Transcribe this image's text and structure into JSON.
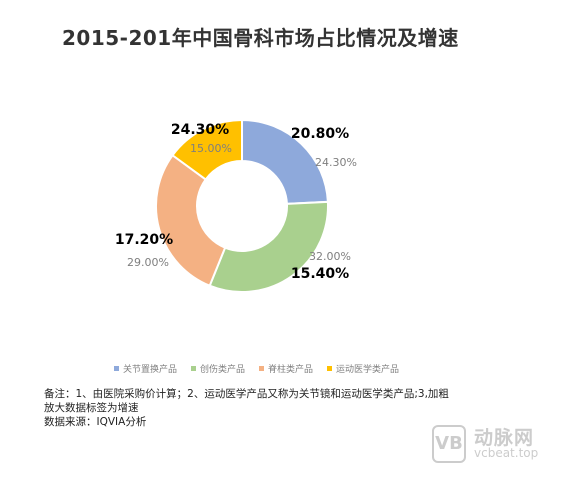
{
  "title": "2015-201年中国骨科市场占比情况及增速",
  "chart_data": {
    "type": "pie",
    "title": "2015-201年中国骨科市场占比情况及增速",
    "categories": [
      "关节置换产品",
      "创伤类产品",
      "脊柱类产品",
      "运动医学类产品"
    ],
    "colors": [
      "#8EA9DB",
      "#A9D08E",
      "#F4B183",
      "#FFC000"
    ],
    "series": [
      {
        "values": [
          24.3,
          32.0,
          29.0,
          15.0
        ],
        "labels": [
          "24.30%",
          "32.00%",
          "29.00%",
          "15.00%"
        ]
      },
      {
        "values": [
          20.8,
          15.4,
          17.2,
          24.3
        ],
        "labels": [
          "20.80%",
          "15.40%",
          "17.20%",
          "24.30%"
        ]
      }
    ],
    "legend_position": "bottom"
  },
  "notes": [
    "备注：1、由医院采购价计算；2、运动医学产品又称为关节镜和运动医学类产品;3,加粗",
    "放大数据标签为增速",
    "数据来源：IQVIA分析"
  ],
  "watermark": {
    "logo": "VB",
    "name": "动脉网",
    "site": "vcbeat.top"
  }
}
